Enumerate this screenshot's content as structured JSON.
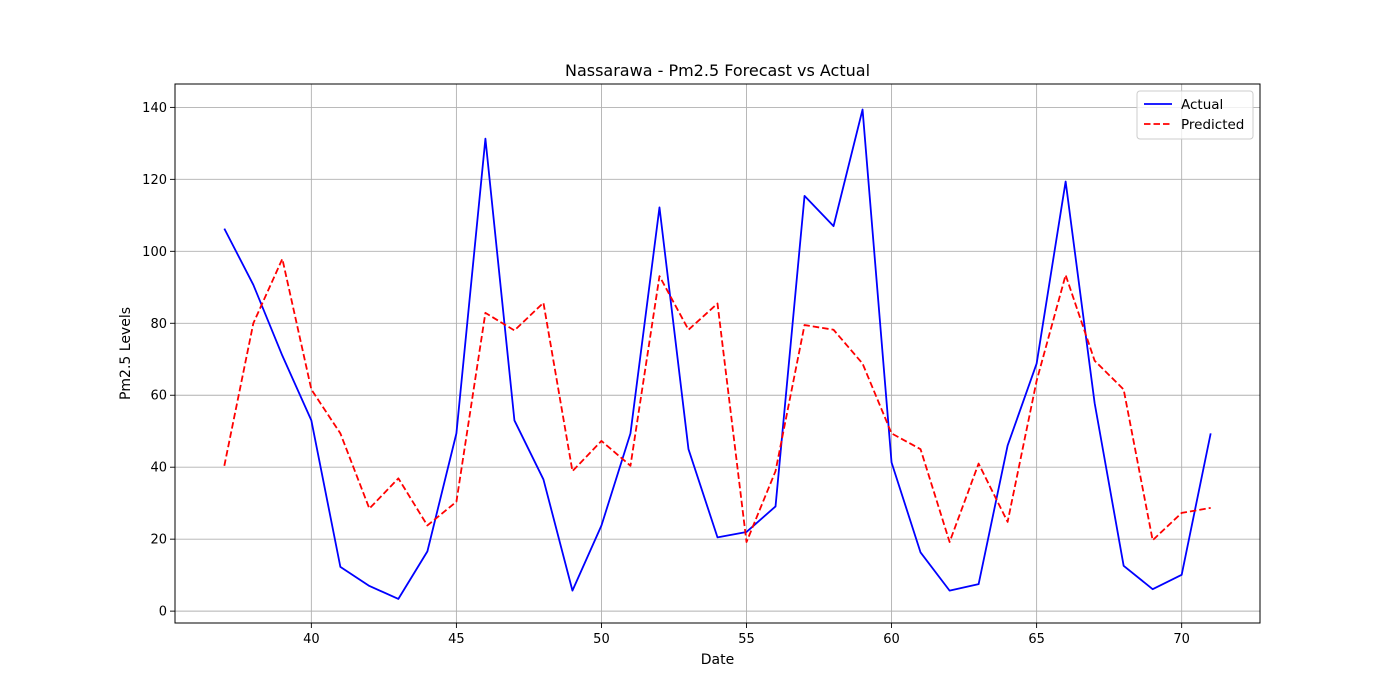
{
  "chart_data": {
    "type": "line",
    "title": "Nassarawa - Pm2.5 Forecast vs Actual",
    "xlabel": "Date",
    "ylabel": "Pm2.5 Levels",
    "xlim": [
      35.3,
      72.7
    ],
    "ylim": [
      -3.3,
      146.5
    ],
    "xticks": [
      40,
      45,
      50,
      55,
      60,
      65,
      70
    ],
    "yticks": [
      0,
      20,
      40,
      60,
      80,
      100,
      120,
      140
    ],
    "grid": true,
    "legend_position": "top-right",
    "x": [
      37,
      38,
      39,
      40,
      41,
      42,
      43,
      44,
      45,
      46,
      47,
      48,
      49,
      50,
      51,
      52,
      53,
      54,
      55,
      56,
      57,
      58,
      59,
      60,
      61,
      62,
      63,
      64,
      65,
      66,
      67,
      68,
      69,
      70,
      71
    ],
    "series": [
      {
        "name": "Actual",
        "color": "#0000ff",
        "style": "solid",
        "values": [
          106.3,
          90.7,
          71.0,
          53.0,
          12.3,
          7.0,
          3.4,
          16.6,
          49.4,
          131.3,
          53.0,
          36.6,
          5.7,
          23.8,
          49.4,
          112.2,
          45.0,
          20.5,
          22.0,
          29.1,
          115.4,
          107.0,
          139.4,
          41.3,
          16.3,
          5.7,
          7.5,
          46.0,
          68.8,
          119.4,
          57.8,
          12.6,
          6.1,
          10.1,
          49.4
        ]
      },
      {
        "name": "Predicted",
        "color": "#ff0000",
        "style": "dashed",
        "values": [
          40.4,
          80.0,
          97.9,
          61.6,
          49.4,
          28.5,
          36.9,
          23.8,
          30.4,
          82.9,
          78.0,
          85.7,
          38.9,
          47.3,
          40.4,
          93.1,
          78.2,
          85.5,
          19.2,
          38.9,
          79.5,
          78.2,
          68.8,
          49.4,
          45.0,
          19.2,
          41.0,
          24.8,
          64.0,
          93.4,
          69.6,
          61.6,
          19.7,
          27.3,
          28.7
        ]
      }
    ]
  }
}
